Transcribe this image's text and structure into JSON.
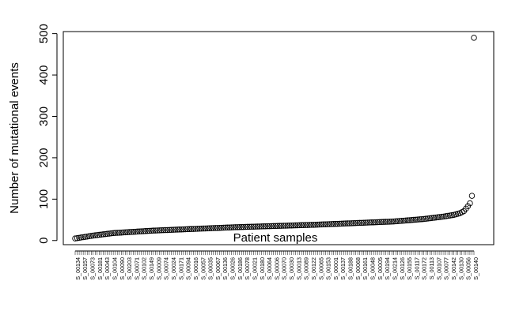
{
  "chart_data": {
    "type": "scatter",
    "title": "",
    "xlabel": "Patient samples",
    "ylabel": "Number of mutational events",
    "ylim": [
      -10,
      505
    ],
    "yticks": [
      0,
      100,
      200,
      300,
      400,
      500
    ],
    "grid": false,
    "marker": "open-circle",
    "n_points": 200,
    "x_tick_labels": [
      "S_00134",
      "S_00157",
      "S_00073",
      "S_00181",
      "S_00043",
      "S_00104",
      "S_00090",
      "S_00203",
      "S_00071",
      "S_00102",
      "S_00149",
      "S_00009",
      "S_00074",
      "S_00024",
      "S_00171",
      "S_00094",
      "S_00016",
      "S_00057",
      "S_00035",
      "S_00067",
      "S_00136",
      "S_00026",
      "S_00186",
      "S_00078",
      "S_00021",
      "S_00180",
      "S_00064",
      "S_00006",
      "S_00070",
      "S_00030",
      "S_00013",
      "S_00089",
      "S_00122",
      "S_00065",
      "S_00153",
      "S_00001",
      "S_00137",
      "S_00188",
      "S_00068",
      "S_00161",
      "S_00048",
      "S_00005",
      "S_00194",
      "S_00214",
      "S_00126",
      "S_00155",
      "S_00117",
      "S_00172",
      "S_00113",
      "S_00107",
      "S_00077",
      "S_00142",
      "S_00130",
      "S_00056",
      "S_00140"
    ],
    "y_curve_knots": {
      "index": [
        1,
        10,
        20,
        40,
        60,
        80,
        100,
        120,
        140,
        160,
        175,
        185,
        190,
        193,
        195,
        196,
        197,
        198,
        199,
        200
      ],
      "value": [
        5,
        12,
        18,
        24,
        28,
        32,
        35,
        38,
        42,
        46,
        52,
        58,
        62,
        66,
        71,
        77,
        83,
        90,
        108,
        490
      ]
    }
  }
}
